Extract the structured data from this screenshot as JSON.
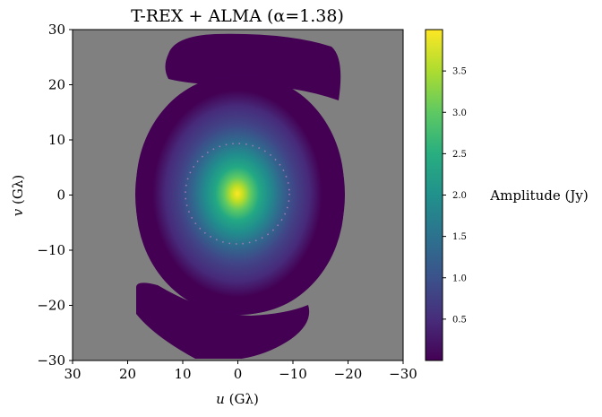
{
  "chart_data": {
    "type": "heatmap",
    "title": "T-REX + ALMA (α=1.38)",
    "xlabel_var": "u",
    "xlabel_unit": " (Gλ)",
    "ylabel_var": "v",
    "ylabel_unit": " (Gλ)",
    "xlim": [
      30,
      -30
    ],
    "ylim": [
      -30,
      30
    ],
    "x_ticks": [
      30,
      20,
      10,
      0,
      -10,
      -20,
      -30
    ],
    "x_tick_labels": [
      "30",
      "20",
      "10",
      "0",
      "−10",
      "−20",
      "−30"
    ],
    "y_ticks": [
      30,
      20,
      10,
      0,
      -10,
      -20,
      -30
    ],
    "y_tick_labels": [
      "30",
      "20",
      "10",
      "0",
      "−10",
      "−20",
      "−30"
    ],
    "background_color": "#808080",
    "colormap": "viridis",
    "colorbar": {
      "label": "Amplitude (Jy)",
      "range": [
        0,
        4.0
      ],
      "ticks": [
        0.5,
        1.0,
        1.5,
        2.0,
        2.5,
        3.0,
        3.5
      ],
      "tick_labels": [
        "0.5",
        "1.0",
        "1.5",
        "2.0",
        "2.5",
        "3.0",
        "3.5"
      ]
    },
    "peak_amplitude": 3.95,
    "peak_center": [
      0,
      0
    ],
    "regions": [
      {
        "name": "central ellipse",
        "u_range": [
          -19,
          19
        ],
        "v_range": [
          -21.5,
          21.5
        ]
      },
      {
        "name": "upper arc",
        "u_range": [
          -19,
          13.5
        ],
        "v_range": [
          15,
          28
        ]
      },
      {
        "name": "lower arc",
        "u_range": [
          -13.5,
          19
        ],
        "v_range": [
          -28,
          -15
        ]
      }
    ],
    "ring_radius": 9.5
  }
}
